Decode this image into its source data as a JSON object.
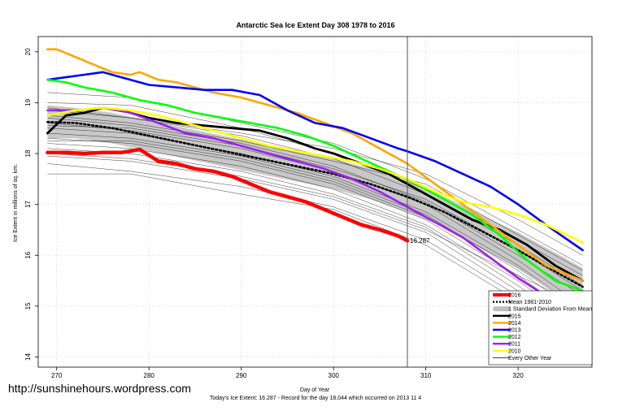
{
  "chart_data": {
    "type": "line",
    "title": "Antarctic Sea Ice Extent Day 308 1978 to 2016",
    "xlabel": "Day of Year",
    "ylabel": "Ice Extent in millions of sq. km.",
    "xlim": [
      268,
      328
    ],
    "ylim": [
      13.8,
      20.3
    ],
    "x_ticks": [
      270,
      280,
      290,
      300,
      310,
      320
    ],
    "y_ticks": [
      14,
      15,
      16,
      17,
      18,
      19,
      20
    ],
    "marker_day": 308,
    "annotation": {
      "text": "16.287",
      "x": 308,
      "y": 16.287,
      "color": "#ff0000"
    },
    "footer": "Today's Ice Extent: 16.287  - Record for the day  18.044 which occurred on 2013 11 4",
    "grid": true,
    "legend_position": "bottom-right",
    "legend": [
      {
        "label": "2016",
        "color": "#ff0000",
        "style": "thick"
      },
      {
        "label": "Mean 1981-2010",
        "color": "#000000",
        "style": "dotted"
      },
      {
        "label": "1 Standard Deviation From Mean",
        "color": "#bebebe",
        "style": "band"
      },
      {
        "label": "2015",
        "color": "#000000",
        "style": "solid"
      },
      {
        "label": "2014",
        "color": "#ffa500",
        "style": "solid"
      },
      {
        "label": "2013",
        "color": "#0000ff",
        "style": "solid"
      },
      {
        "label": "2012",
        "color": "#00ff00",
        "style": "solid"
      },
      {
        "label": "2011",
        "color": "#a020f0",
        "style": "solid"
      },
      {
        "label": "2010",
        "color": "#ffff00",
        "style": "solid"
      },
      {
        "label": "Every Other Year",
        "color": "#000000",
        "style": "thin"
      }
    ],
    "band": {
      "x": [
        269,
        272,
        276,
        280,
        284,
        288,
        292,
        296,
        300,
        304,
        308,
        312,
        316,
        320,
        324,
        327
      ],
      "upper": [
        18.95,
        18.9,
        18.8,
        18.65,
        18.5,
        18.35,
        18.2,
        18.05,
        17.9,
        17.7,
        17.45,
        17.15,
        16.8,
        16.45,
        16.05,
        15.75
      ],
      "lower": [
        18.3,
        18.3,
        18.2,
        18.05,
        17.9,
        17.75,
        17.6,
        17.45,
        17.3,
        17.1,
        16.85,
        16.55,
        16.15,
        15.75,
        15.3,
        15.0
      ]
    },
    "series": [
      {
        "name": "Mean 1981-2010",
        "color": "#000000",
        "width": 2.6,
        "dash": "2,3",
        "x": [
          269,
          272,
          276,
          280,
          284,
          288,
          292,
          296,
          300,
          304,
          308,
          312,
          316,
          320,
          324,
          327
        ],
        "y": [
          18.62,
          18.6,
          18.5,
          18.35,
          18.2,
          18.05,
          17.9,
          17.75,
          17.6,
          17.4,
          17.15,
          16.85,
          16.48,
          16.1,
          15.68,
          15.38
        ]
      },
      {
        "name": "2015",
        "color": "#000000",
        "width": 2.8,
        "x": [
          269,
          271,
          273,
          275,
          277,
          280,
          283,
          286,
          289,
          292,
          295,
          298,
          300,
          303,
          306,
          309,
          312,
          315,
          318,
          321,
          324,
          327
        ],
        "y": [
          18.4,
          18.75,
          18.8,
          18.9,
          18.85,
          18.7,
          18.6,
          18.55,
          18.5,
          18.45,
          18.3,
          18.1,
          18.0,
          17.8,
          17.6,
          17.3,
          17.0,
          16.7,
          16.5,
          16.2,
          15.8,
          15.5
        ]
      },
      {
        "name": "2014",
        "color": "#ffa500",
        "width": 2.6,
        "x": [
          269,
          270,
          272,
          274,
          276,
          278,
          279,
          281,
          283,
          285,
          287,
          290,
          293,
          296,
          299,
          302,
          305,
          308,
          311,
          314,
          317,
          320,
          323,
          327
        ],
        "y": [
          20.05,
          20.05,
          19.9,
          19.75,
          19.6,
          19.55,
          19.6,
          19.45,
          19.4,
          19.3,
          19.2,
          19.1,
          18.95,
          18.8,
          18.6,
          18.4,
          18.1,
          17.8,
          17.4,
          17.0,
          16.6,
          16.2,
          15.8,
          15.5
        ]
      },
      {
        "name": "2013",
        "color": "#0000ff",
        "width": 2.6,
        "x": [
          269,
          271,
          273,
          275,
          277,
          280,
          283,
          286,
          289,
          292,
          295,
          298,
          301,
          304,
          307,
          308,
          311,
          314,
          317,
          320,
          323,
          325,
          327
        ],
        "y": [
          19.45,
          19.5,
          19.55,
          19.6,
          19.5,
          19.35,
          19.3,
          19.25,
          19.25,
          19.15,
          18.85,
          18.6,
          18.5,
          18.3,
          18.1,
          18.044,
          17.85,
          17.6,
          17.35,
          17.0,
          16.6,
          16.35,
          16.1
        ]
      },
      {
        "name": "2012",
        "color": "#00ff00",
        "width": 2.6,
        "x": [
          269,
          271,
          273,
          276,
          279,
          282,
          285,
          288,
          291,
          294,
          297,
          300,
          303,
          306,
          309,
          312,
          315,
          318,
          321,
          324,
          327
        ],
        "y": [
          19.45,
          19.4,
          19.3,
          19.2,
          19.05,
          18.95,
          18.8,
          18.7,
          18.6,
          18.5,
          18.35,
          18.15,
          17.9,
          17.65,
          17.4,
          17.1,
          16.8,
          16.4,
          15.9,
          15.5,
          15.3
        ]
      },
      {
        "name": "2011",
        "color": "#a020f0",
        "width": 2.6,
        "x": [
          269,
          272,
          275,
          278,
          281,
          284,
          287,
          290,
          293,
          296,
          299,
          302,
          305,
          308,
          311,
          314,
          317,
          320,
          323,
          327
        ],
        "y": [
          18.85,
          18.85,
          18.9,
          18.8,
          18.6,
          18.4,
          18.3,
          18.15,
          18.0,
          17.85,
          17.7,
          17.5,
          17.25,
          16.95,
          16.65,
          16.35,
          15.95,
          15.55,
          15.2,
          14.95
        ]
      },
      {
        "name": "2010",
        "color": "#ffff00",
        "width": 2.6,
        "x": [
          269,
          272,
          275,
          278,
          281,
          284,
          287,
          290,
          293,
          296,
          299,
          302,
          305,
          308,
          311,
          314,
          317,
          320,
          323,
          327
        ],
        "y": [
          18.75,
          18.85,
          18.9,
          18.85,
          18.75,
          18.6,
          18.45,
          18.3,
          18.15,
          18.05,
          17.95,
          17.85,
          17.7,
          17.5,
          17.25,
          17.05,
          16.95,
          16.8,
          16.6,
          16.25
        ]
      },
      {
        "name": "2016",
        "color": "#ff0000",
        "width": 4.5,
        "x": [
          269,
          271,
          273,
          275,
          277,
          279,
          281,
          283,
          285,
          287,
          289,
          291,
          293,
          295,
          297,
          299,
          301,
          303,
          305,
          307,
          308
        ],
        "y": [
          18.02,
          18.02,
          18.0,
          18.02,
          18.02,
          18.08,
          17.85,
          17.8,
          17.7,
          17.65,
          17.55,
          17.4,
          17.25,
          17.15,
          17.05,
          16.9,
          16.75,
          16.6,
          16.5,
          16.38,
          16.287
        ]
      }
    ],
    "thin_series": [
      {
        "x": [
          269,
          278,
          290,
          300,
          310,
          320,
          327
        ],
        "y": [
          19.2,
          19.1,
          18.6,
          18.2,
          17.5,
          16.5,
          15.8
        ]
      },
      {
        "x": [
          269,
          278,
          290,
          300,
          310,
          320,
          327
        ],
        "y": [
          19.0,
          18.95,
          18.5,
          18.0,
          17.3,
          16.3,
          15.6
        ]
      },
      {
        "x": [
          269,
          278,
          290,
          300,
          310,
          320,
          327
        ],
        "y": [
          18.85,
          18.7,
          18.35,
          17.9,
          17.2,
          16.2,
          15.4
        ]
      },
      {
        "x": [
          269,
          278,
          290,
          300,
          310,
          320,
          327
        ],
        "y": [
          18.7,
          18.55,
          18.2,
          17.75,
          17.05,
          16.0,
          15.2
        ]
      },
      {
        "x": [
          269,
          278,
          290,
          300,
          310,
          320,
          327
        ],
        "y": [
          18.6,
          18.45,
          18.1,
          17.65,
          17.0,
          15.9,
          15.0
        ]
      },
      {
        "x": [
          269,
          278,
          290,
          300,
          310,
          320,
          327
        ],
        "y": [
          18.5,
          18.4,
          18.0,
          17.55,
          16.85,
          15.8,
          14.9
        ]
      },
      {
        "x": [
          269,
          278,
          290,
          300,
          310,
          320,
          327
        ],
        "y": [
          18.4,
          18.3,
          17.95,
          17.5,
          16.8,
          15.7,
          14.8
        ]
      },
      {
        "x": [
          269,
          278,
          290,
          300,
          310,
          320,
          327
        ],
        "y": [
          18.3,
          18.2,
          17.85,
          17.4,
          16.7,
          15.6,
          14.7
        ]
      },
      {
        "x": [
          269,
          278,
          290,
          300,
          310,
          320,
          327
        ],
        "y": [
          18.2,
          18.1,
          17.75,
          17.3,
          16.6,
          15.5,
          14.6
        ]
      },
      {
        "x": [
          269,
          278,
          290,
          300,
          310,
          320,
          327
        ],
        "y": [
          18.1,
          18.0,
          17.65,
          17.2,
          16.55,
          15.4,
          14.5
        ]
      },
      {
        "x": [
          269,
          278,
          290,
          300,
          310,
          320,
          327
        ],
        "y": [
          18.0,
          17.9,
          17.55,
          17.15,
          16.5,
          15.6,
          15.0
        ]
      },
      {
        "x": [
          269,
          278,
          290,
          300,
          310,
          320,
          327
        ],
        "y": [
          17.95,
          17.85,
          17.5,
          17.1,
          16.45,
          15.3,
          14.3
        ]
      },
      {
        "x": [
          269,
          278,
          290,
          300,
          310,
          320,
          327
        ],
        "y": [
          17.8,
          17.65,
          17.35,
          16.95,
          16.3,
          15.2,
          14.0
        ]
      },
      {
        "x": [
          269,
          278,
          290,
          300,
          310,
          320,
          327
        ],
        "y": [
          17.6,
          17.6,
          17.2,
          16.9,
          16.2,
          15.1,
          14.2
        ]
      },
      {
        "x": [
          269,
          278,
          290,
          300,
          310,
          320,
          327
        ],
        "y": [
          18.9,
          18.7,
          18.4,
          18.1,
          17.6,
          16.7,
          16.0
        ]
      },
      {
        "x": [
          269,
          278,
          290,
          300,
          310,
          320,
          327
        ],
        "y": [
          18.75,
          18.6,
          18.25,
          17.85,
          17.4,
          16.4,
          15.7
        ]
      },
      {
        "x": [
          269,
          278,
          290,
          300,
          310,
          320,
          327
        ],
        "y": [
          18.55,
          18.5,
          18.15,
          17.7,
          17.1,
          16.1,
          15.3
        ]
      },
      {
        "x": [
          269,
          278,
          290,
          300,
          310,
          320,
          327
        ],
        "y": [
          18.25,
          18.25,
          17.9,
          17.45,
          16.75,
          15.75,
          14.9
        ]
      }
    ]
  },
  "watermark": "http://sunshinehours.wordpress.com"
}
